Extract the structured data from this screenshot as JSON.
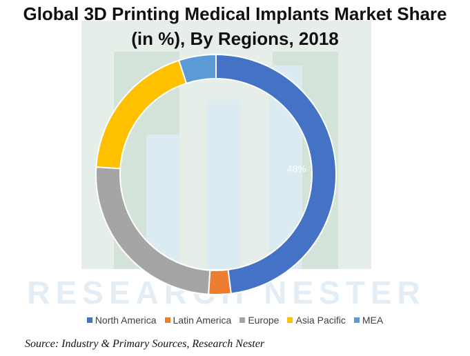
{
  "chart_data": {
    "type": "pie",
    "donut": true,
    "title_line1": "Global 3D Printing Medical Implants Market Share",
    "title_line2": "(in %), By Regions, 2018",
    "slices": [
      {
        "name": "North America",
        "value": 48,
        "color": "#4472C4",
        "label": "48%"
      },
      {
        "name": "Latin America",
        "value": 3,
        "color": "#ED7D31",
        "label": ""
      },
      {
        "name": "Europe",
        "value": 25,
        "color": "#A5A5A5",
        "label": ""
      },
      {
        "name": "Asia Pacific",
        "value": 19,
        "color": "#FFC000",
        "label": ""
      },
      {
        "name": "MEA",
        "value": 5,
        "color": "#5B9BD5",
        "label": ""
      }
    ],
    "legend_position": "bottom"
  },
  "watermark": {
    "text": "RESEARCH NESTER"
  },
  "source": "Source: Industry & Primary Sources, Research Nester"
}
